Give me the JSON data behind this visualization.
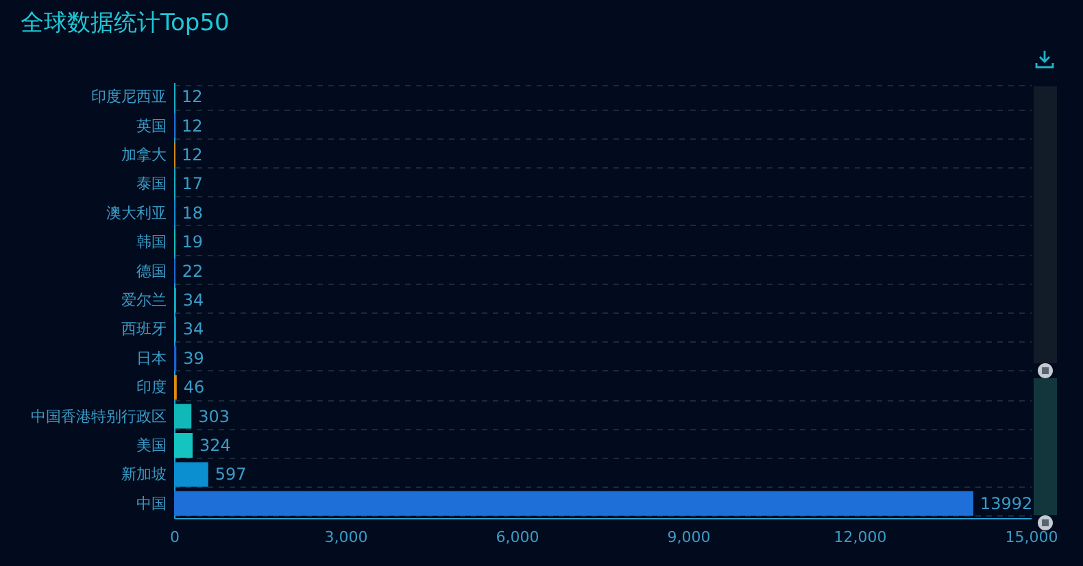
{
  "chart_data": {
    "type": "bar",
    "orientation": "horizontal",
    "title": "全球数据统计Top50",
    "categories": [
      "印度尼西亚",
      "英国",
      "加拿大",
      "泰国",
      "澳大利亚",
      "韩国",
      "德国",
      "爱尔兰",
      "西班牙",
      "日本",
      "印度",
      "中国香港特别行政区",
      "美国",
      "新加坡",
      "中国"
    ],
    "values": [
      12,
      12,
      12,
      17,
      18,
      19,
      22,
      34,
      34,
      39,
      46,
      303,
      324,
      597,
      13992
    ],
    "colors": [
      "#12b4c8",
      "#1e6ad0",
      "#e08a10",
      "#12b4c8",
      "#0b8fd0",
      "#14c0bc",
      "#1e6ad0",
      "#12b4c8",
      "#0ba4cc",
      "#1e60d0",
      "#e08a10",
      "#12b8b8",
      "#14c4c0",
      "#0b8fd0",
      "#1e6fd8"
    ],
    "xlim": [
      0,
      15000
    ],
    "xticks": [
      0,
      {
        "value": 3000,
        "label": "3,000"
      },
      {
        "value": 6000,
        "label": "6,000"
      },
      {
        "value": 9000,
        "label": "9,000"
      },
      {
        "value": 12000,
        "label": "12,000"
      },
      {
        "value": 15000,
        "label": "15,000"
      }
    ],
    "grid": "y",
    "data_labels": true
  }
}
